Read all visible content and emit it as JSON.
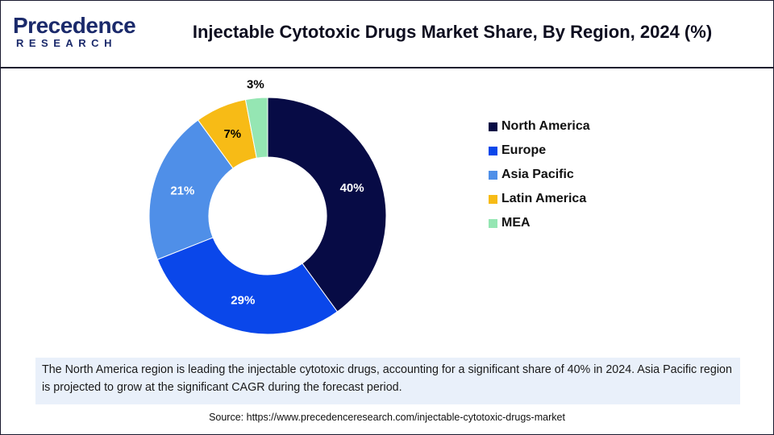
{
  "brand": {
    "name": "Precedence",
    "sub": "RESEARCH"
  },
  "header": {
    "title": "Injectable Cytotoxic Drugs Market Share, By Region, 2024 (%)"
  },
  "chart_data": {
    "type": "pie",
    "donut": true,
    "title": "Injectable Cytotoxic Drugs Market Share, By Region, 2024 (%)",
    "categories": [
      "North America",
      "Europe",
      "Asia Pacific",
      "Latin America",
      "MEA"
    ],
    "values": [
      40,
      29,
      21,
      7,
      3
    ],
    "value_labels": [
      "40%",
      "29%",
      "21%",
      "7%",
      "3%"
    ],
    "colors": [
      "#070b45",
      "#0a47ea",
      "#4f8fe8",
      "#f7bb16",
      "#95e6b3"
    ],
    "label_colors": [
      "#ffffff",
      "#ffffff",
      "#ffffff",
      "#000000",
      "#000000"
    ],
    "legend_position": "right"
  },
  "note": {
    "text": "The North America region is leading the injectable cytotoxic drugs, accounting for a significant share of 40% in 2024. Asia Pacific region is projected to grow at the significant CAGR during the forecast period."
  },
  "source": {
    "text": "Source: https://www.precedenceresearch.com/injectable-cytotoxic-drugs-market"
  }
}
